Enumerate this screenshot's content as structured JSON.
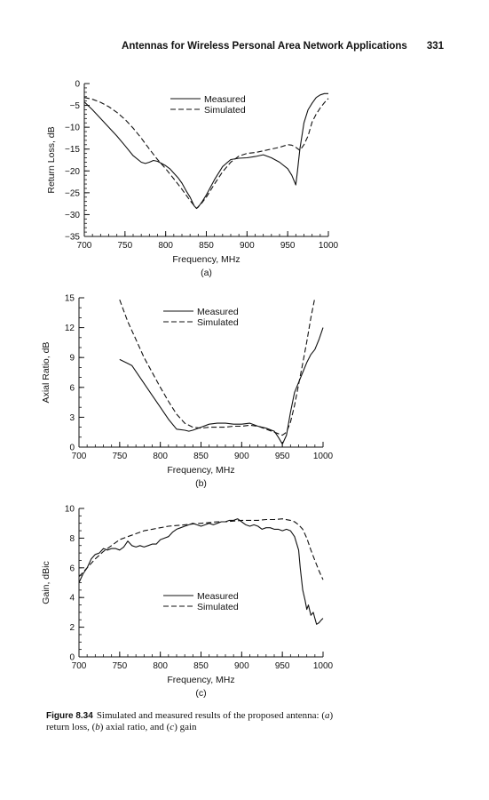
{
  "header": {
    "title": "Antennas for Wireless Personal Area Network Applications",
    "page_number": "331"
  },
  "caption": {
    "label": "Figure 8.34",
    "text_parts": [
      {
        "t": "Simulated and measured results of the proposed antenna: (",
        "i": false
      },
      {
        "t": "a",
        "i": true
      },
      {
        "t": ") return loss, (",
        "i": false
      },
      {
        "t": "b",
        "i": true
      },
      {
        "t": ") axial ratio, and (",
        "i": false
      },
      {
        "t": "c",
        "i": true
      },
      {
        "t": ") gain",
        "i": false
      }
    ]
  },
  "chart_data": [
    {
      "type": "line",
      "sublabel": "(a)",
      "xlabel": "Frequency, MHz",
      "ylabel": "Return Loss, dB",
      "xlim": [
        700,
        1000
      ],
      "ylim": [
        -35,
        0
      ],
      "xticks": [
        700,
        750,
        800,
        850,
        900,
        950,
        1000
      ],
      "yticks": [
        0,
        -5,
        -10,
        -15,
        -20,
        -25,
        -30,
        -35
      ],
      "xminor": 10,
      "yminor": 1,
      "legend": {
        "position": "top-center",
        "entries": [
          "Measured",
          "Simulated"
        ]
      },
      "series": [
        {
          "name": "Measured",
          "dash": "solid",
          "x": [
            700,
            710,
            720,
            730,
            740,
            750,
            760,
            770,
            775,
            780,
            785,
            790,
            795,
            800,
            805,
            810,
            815,
            820,
            825,
            830,
            835,
            838,
            840,
            845,
            850,
            860,
            870,
            880,
            890,
            900,
            910,
            920,
            930,
            940,
            950,
            955,
            960,
            962,
            965,
            970,
            975,
            980,
            985,
            990,
            995,
            1000
          ],
          "y": [
            -4.2,
            -6,
            -8,
            -10,
            -12,
            -14.2,
            -16.5,
            -18,
            -18.3,
            -18,
            -17.6,
            -17.8,
            -18.3,
            -18.8,
            -19.5,
            -20.5,
            -21.5,
            -22.8,
            -24.5,
            -26,
            -28,
            -28.6,
            -28.3,
            -27,
            -25.5,
            -22,
            -19,
            -17.4,
            -17.1,
            -17,
            -16.7,
            -16.3,
            -17,
            -18,
            -19.5,
            -21,
            -23.2,
            -20,
            -15,
            -9,
            -6,
            -4.5,
            -3.2,
            -2.6,
            -2.3,
            -2.3
          ]
        },
        {
          "name": "Simulated",
          "dash": "dashed",
          "x": [
            700,
            710,
            720,
            730,
            740,
            750,
            760,
            770,
            780,
            790,
            800,
            810,
            820,
            830,
            838,
            845,
            850,
            860,
            870,
            880,
            890,
            900,
            910,
            920,
            930,
            940,
            950,
            955,
            960,
            965,
            970,
            975,
            980,
            985,
            990,
            995,
            1000
          ],
          "y": [
            -3.2,
            -3.6,
            -4.3,
            -5.3,
            -6.6,
            -8.2,
            -10.2,
            -12.5,
            -15,
            -17.4,
            -19.5,
            -21.8,
            -24.2,
            -26.8,
            -28.6,
            -27.2,
            -26,
            -23,
            -20.2,
            -18,
            -16.6,
            -16,
            -15.8,
            -15.4,
            -15,
            -14.6,
            -14,
            -14.1,
            -14.6,
            -15.3,
            -14,
            -12,
            -8.8,
            -7,
            -5.6,
            -4.4,
            -3.4
          ]
        }
      ]
    },
    {
      "type": "line",
      "sublabel": "(b)",
      "xlabel": "Frequency, MHz",
      "ylabel": "Axial Ratio, dB",
      "xlim": [
        700,
        1000
      ],
      "ylim": [
        0,
        15
      ],
      "xticks": [
        700,
        750,
        800,
        850,
        900,
        950,
        1000
      ],
      "yticks": [
        0,
        3,
        6,
        9,
        12,
        15
      ],
      "xminor": 10,
      "yminor": 1,
      "legend": {
        "position": "top-center",
        "entries": [
          "Measured",
          "Simulated"
        ]
      },
      "series": [
        {
          "name": "Measured",
          "dash": "solid",
          "x": [
            750,
            760,
            765,
            770,
            780,
            790,
            800,
            810,
            820,
            830,
            835,
            840,
            850,
            860,
            870,
            880,
            890,
            900,
            910,
            920,
            930,
            940,
            945,
            950,
            955,
            960,
            965,
            970,
            975,
            980,
            985,
            990,
            995,
            1000
          ],
          "y": [
            8.8,
            8.4,
            8.2,
            7.6,
            6.4,
            5.2,
            4,
            2.8,
            1.8,
            1.7,
            1.6,
            1.7,
            2,
            2.3,
            2.4,
            2.4,
            2.3,
            2.3,
            2.4,
            2.1,
            1.9,
            1.6,
            1,
            0.3,
            1.2,
            3.5,
            5.5,
            6.5,
            7.5,
            8.5,
            9.3,
            9.8,
            10.8,
            12
          ]
        },
        {
          "name": "Simulated",
          "dash": "dashed",
          "x": [
            750,
            760,
            770,
            780,
            790,
            800,
            810,
            820,
            830,
            840,
            850,
            860,
            870,
            880,
            890,
            900,
            910,
            920,
            930,
            940,
            950,
            955,
            960,
            965,
            970,
            975,
            980,
            985,
            990
          ],
          "y": [
            14.8,
            12.6,
            10.8,
            9,
            7.5,
            6,
            4.6,
            3.3,
            2.4,
            2,
            1.9,
            2,
            2,
            2,
            2.1,
            2.1,
            2.2,
            2.1,
            1.8,
            1.5,
            1.2,
            1.5,
            2.5,
            4.2,
            6.3,
            8.4,
            10.6,
            13,
            15
          ]
        }
      ]
    },
    {
      "type": "line",
      "sublabel": "(c)",
      "xlabel": "Frequency, MHz",
      "ylabel": "Gain, dBic",
      "xlim": [
        700,
        1000
      ],
      "ylim": [
        0,
        10
      ],
      "xticks": [
        700,
        750,
        800,
        850,
        900,
        950,
        1000
      ],
      "yticks": [
        0,
        2,
        4,
        6,
        8,
        10
      ],
      "xminor": 10,
      "yminor": 0.5,
      "legend": {
        "position": "center-left",
        "entries": [
          "Measured",
          "Simulated"
        ]
      },
      "series": [
        {
          "name": "Measured",
          "dash": "solid",
          "x": [
            700,
            705,
            710,
            715,
            720,
            725,
            730,
            735,
            740,
            745,
            750,
            755,
            760,
            765,
            770,
            775,
            780,
            785,
            790,
            795,
            800,
            805,
            810,
            815,
            820,
            825,
            830,
            835,
            840,
            845,
            850,
            855,
            860,
            865,
            870,
            875,
            880,
            885,
            890,
            895,
            900,
            905,
            910,
            915,
            920,
            925,
            930,
            935,
            940,
            945,
            950,
            955,
            960,
            965,
            970,
            972,
            975,
            978,
            980,
            982,
            985,
            988,
            990,
            992,
            995,
            998,
            1000
          ],
          "y": [
            5,
            5.6,
            6,
            6.6,
            6.9,
            7,
            7.3,
            7.2,
            7.3,
            7.3,
            7.2,
            7.4,
            7.8,
            7.5,
            7.4,
            7.5,
            7.4,
            7.5,
            7.6,
            7.6,
            7.9,
            8,
            8.1,
            8.4,
            8.6,
            8.7,
            8.8,
            8.9,
            9,
            8.9,
            8.8,
            8.9,
            9,
            8.9,
            9,
            9.1,
            9.1,
            9.2,
            9.2,
            9.3,
            9.1,
            8.9,
            8.8,
            8.9,
            8.8,
            8.6,
            8.7,
            8.7,
            8.6,
            8.6,
            8.5,
            8.6,
            8.5,
            8.1,
            7.2,
            6,
            4.5,
            3.8,
            3.2,
            3.5,
            2.8,
            3,
            2.6,
            2.2,
            2.3,
            2.5,
            2.6
          ]
        },
        {
          "name": "Simulated",
          "dash": "dashed",
          "x": [
            700,
            710,
            720,
            730,
            740,
            750,
            760,
            770,
            780,
            790,
            800,
            810,
            820,
            830,
            840,
            850,
            860,
            870,
            880,
            890,
            900,
            910,
            920,
            930,
            940,
            950,
            960,
            965,
            970,
            975,
            980,
            985,
            990,
            995,
            1000
          ],
          "y": [
            5.4,
            6,
            6.6,
            7.1,
            7.5,
            7.9,
            8.1,
            8.3,
            8.5,
            8.6,
            8.7,
            8.8,
            8.85,
            8.9,
            8.95,
            9,
            9.05,
            9.1,
            9.1,
            9.15,
            9.2,
            9.2,
            9.2,
            9.25,
            9.25,
            9.3,
            9.2,
            9.1,
            8.9,
            8.6,
            8,
            7.2,
            6.5,
            5.8,
            5.2
          ]
        }
      ]
    }
  ]
}
